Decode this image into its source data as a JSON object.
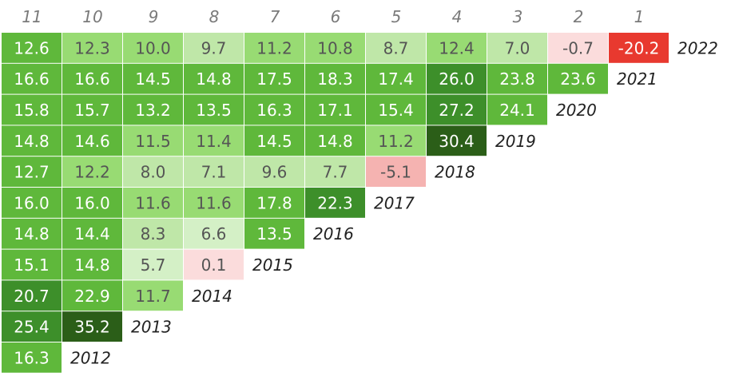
{
  "chart_data": {
    "type": "heatmap",
    "title": "",
    "xlabel": "",
    "ylabel": "",
    "columns": [
      "11",
      "10",
      "9",
      "8",
      "7",
      "6",
      "5",
      "4",
      "3",
      "2",
      "1"
    ],
    "rows": [
      {
        "year": "2022",
        "values": [
          12.6,
          12.3,
          10.0,
          9.7,
          11.2,
          10.8,
          8.7,
          12.4,
          7.0,
          -0.7,
          -20.2
        ]
      },
      {
        "year": "2021",
        "values": [
          16.6,
          16.6,
          14.5,
          14.8,
          17.5,
          18.3,
          17.4,
          26.0,
          23.8,
          23.6
        ]
      },
      {
        "year": "2020",
        "values": [
          15.8,
          15.7,
          13.2,
          13.5,
          16.3,
          17.1,
          15.4,
          27.2,
          24.1
        ]
      },
      {
        "year": "2019",
        "values": [
          14.8,
          14.6,
          11.5,
          11.4,
          14.5,
          14.8,
          11.2,
          30.4
        ]
      },
      {
        "year": "2018",
        "values": [
          12.7,
          12.2,
          8.0,
          7.1,
          9.6,
          7.7,
          -5.1
        ]
      },
      {
        "year": "2017",
        "values": [
          16.0,
          16.0,
          11.6,
          11.6,
          17.8,
          22.3
        ]
      },
      {
        "year": "2016",
        "values": [
          14.8,
          14.4,
          8.3,
          6.6,
          13.5
        ]
      },
      {
        "year": "2015",
        "values": [
          15.1,
          14.8,
          5.7,
          0.1
        ]
      },
      {
        "year": "2014",
        "values": [
          20.7,
          22.9,
          11.7
        ]
      },
      {
        "year": "2013",
        "values": [
          25.4,
          35.2
        ]
      },
      {
        "year": "2012",
        "values": [
          16.3
        ]
      }
    ],
    "colors": {
      "strong_negative": "#e8392f",
      "negative": "#f5b3b1",
      "light_negative": "#fbdcdc",
      "pale_green": "#d4f0c6",
      "light_green": "#bfe7a8",
      "green": "#98db73",
      "mid_green": "#5fb83b",
      "dark_green": "#3d8f2a",
      "darkest_green": "#2b5e18"
    }
  }
}
